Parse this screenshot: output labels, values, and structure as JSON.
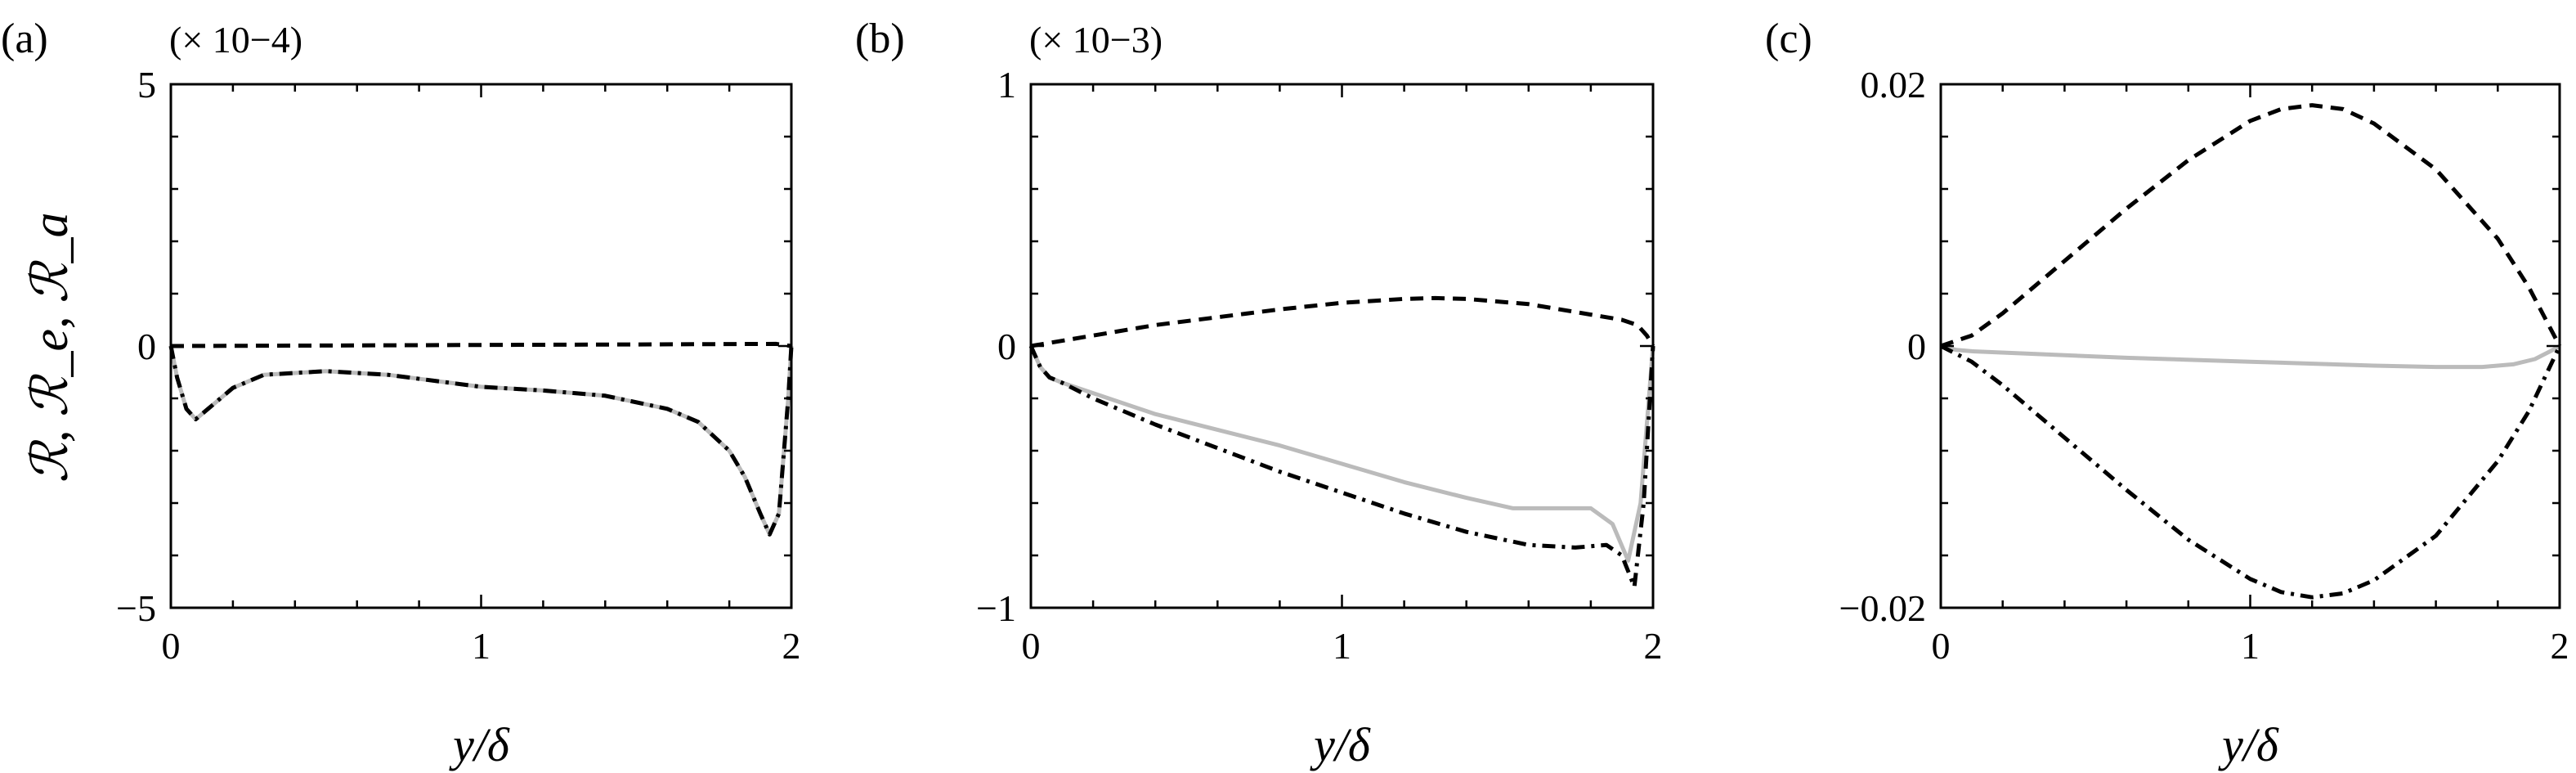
{
  "ylabel": "ℛ, ℛ_e, ℛ_a",
  "chart_data": [
    {
      "type": "line",
      "panel_label": "(a)",
      "scale_label": "(× 10−4)",
      "xlabel": "y/δ",
      "xlim": [
        0,
        2
      ],
      "ylim": [
        -5,
        5
      ],
      "xticks": [
        "0",
        "1",
        "2"
      ],
      "yticks": [
        "−5",
        "0",
        "5"
      ],
      "ytick_values": [
        -5,
        0,
        5
      ],
      "series": [
        {
          "style": "dashed",
          "color": "#000000",
          "x": [
            0,
            0.5,
            1.0,
            1.5,
            1.95,
            2.0
          ],
          "y": [
            0,
            0.01,
            0.02,
            0.03,
            0.04,
            0
          ]
        },
        {
          "style": "dashdot",
          "color": "#000000",
          "x": [
            0,
            0.02,
            0.05,
            0.08,
            0.12,
            0.2,
            0.3,
            0.5,
            0.7,
            1.0,
            1.2,
            1.4,
            1.6,
            1.7,
            1.8,
            1.85,
            1.9,
            1.93,
            1.96,
            1.99,
            2.0
          ],
          "y": [
            0,
            -0.6,
            -1.2,
            -1.4,
            -1.2,
            -0.8,
            -0.55,
            -0.48,
            -0.55,
            -0.78,
            -0.85,
            -0.95,
            -1.2,
            -1.45,
            -2.0,
            -2.5,
            -3.2,
            -3.6,
            -3.2,
            -1.0,
            0
          ]
        },
        {
          "style": "solid",
          "color": "#bbbbbb",
          "x": [
            0,
            0.02,
            0.05,
            0.08,
            0.12,
            0.2,
            0.3,
            0.5,
            0.7,
            1.0,
            1.2,
            1.4,
            1.6,
            1.7,
            1.8,
            1.85,
            1.9,
            1.93,
            1.96,
            1.99,
            2.0
          ],
          "y": [
            0,
            -0.6,
            -1.2,
            -1.4,
            -1.2,
            -0.8,
            -0.55,
            -0.48,
            -0.55,
            -0.78,
            -0.85,
            -0.95,
            -1.2,
            -1.45,
            -2.0,
            -2.5,
            -3.2,
            -3.6,
            -3.2,
            -1.0,
            0
          ]
        }
      ]
    },
    {
      "type": "line",
      "panel_label": "(b)",
      "scale_label": "(× 10−3)",
      "xlabel": "y/δ",
      "xlim": [
        0,
        2
      ],
      "ylim": [
        -1,
        1
      ],
      "xticks": [
        "0",
        "1",
        "2"
      ],
      "yticks": [
        "−1",
        "0",
        "1"
      ],
      "ytick_values": [
        -1,
        0,
        1
      ],
      "series": [
        {
          "style": "dashed",
          "color": "#000000",
          "x": [
            0,
            0.2,
            0.4,
            0.6,
            0.8,
            1.0,
            1.2,
            1.3,
            1.4,
            1.6,
            1.8,
            1.9,
            1.95,
            1.98,
            2.0
          ],
          "y": [
            0,
            0.04,
            0.08,
            0.11,
            0.14,
            0.165,
            0.18,
            0.183,
            0.18,
            0.16,
            0.12,
            0.1,
            0.08,
            0.04,
            0
          ]
        },
        {
          "style": "dashdot",
          "color": "#000000",
          "x": [
            0,
            0.03,
            0.06,
            0.1,
            0.2,
            0.4,
            0.6,
            0.8,
            1.0,
            1.2,
            1.4,
            1.6,
            1.75,
            1.85,
            1.9,
            1.94,
            1.97,
            2.0
          ],
          "y": [
            0,
            -0.08,
            -0.12,
            -0.14,
            -0.2,
            -0.3,
            -0.39,
            -0.48,
            -0.56,
            -0.64,
            -0.71,
            -0.76,
            -0.77,
            -0.76,
            -0.8,
            -0.92,
            -0.6,
            0
          ]
        },
        {
          "style": "solid",
          "color": "#bbbbbb",
          "x": [
            0,
            0.03,
            0.06,
            0.1,
            0.2,
            0.4,
            0.6,
            0.8,
            1.0,
            1.2,
            1.4,
            1.55,
            1.7,
            1.8,
            1.87,
            1.92,
            1.96,
            2.0
          ],
          "y": [
            0,
            -0.08,
            -0.12,
            -0.14,
            -0.18,
            -0.26,
            -0.32,
            -0.38,
            -0.45,
            -0.52,
            -0.58,
            -0.62,
            -0.62,
            -0.62,
            -0.68,
            -0.82,
            -0.6,
            0
          ]
        }
      ]
    },
    {
      "type": "line",
      "panel_label": "(c)",
      "scale_label": "",
      "xlabel": "y/δ",
      "xlim": [
        0,
        2
      ],
      "ylim": [
        -0.02,
        0.02
      ],
      "xticks": [
        "0",
        "1",
        "2"
      ],
      "yticks": [
        "−0.02",
        "0",
        "0.02"
      ],
      "ytick_values": [
        -0.02,
        0,
        0.02
      ],
      "series": [
        {
          "style": "dashed",
          "color": "#000000",
          "x": [
            0,
            0.1,
            0.2,
            0.4,
            0.6,
            0.8,
            1.0,
            1.1,
            1.2,
            1.3,
            1.4,
            1.6,
            1.8,
            1.9,
            2.0
          ],
          "y": [
            0,
            0.0008,
            0.0025,
            0.0065,
            0.0105,
            0.0142,
            0.0172,
            0.0181,
            0.0184,
            0.0181,
            0.017,
            0.0135,
            0.0082,
            0.0045,
            0
          ]
        },
        {
          "style": "dashdot",
          "color": "#000000",
          "x": [
            0,
            0.1,
            0.2,
            0.4,
            0.6,
            0.8,
            1.0,
            1.1,
            1.2,
            1.3,
            1.4,
            1.6,
            1.8,
            1.9,
            2.0
          ],
          "y": [
            0,
            -0.0012,
            -0.003,
            -0.007,
            -0.011,
            -0.0148,
            -0.0178,
            -0.0188,
            -0.0192,
            -0.0189,
            -0.0179,
            -0.0145,
            -0.0088,
            -0.005,
            0
          ]
        },
        {
          "style": "solid",
          "color": "#bbbbbb",
          "x": [
            0,
            0.05,
            0.1,
            0.3,
            0.6,
            1.0,
            1.4,
            1.6,
            1.75,
            1.85,
            1.92,
            1.97,
            2.0
          ],
          "y": [
            0,
            -0.0003,
            -0.0004,
            -0.0006,
            -0.0009,
            -0.0012,
            -0.0015,
            -0.0016,
            -0.0016,
            -0.0014,
            -0.001,
            -0.0004,
            0
          ]
        }
      ]
    }
  ]
}
